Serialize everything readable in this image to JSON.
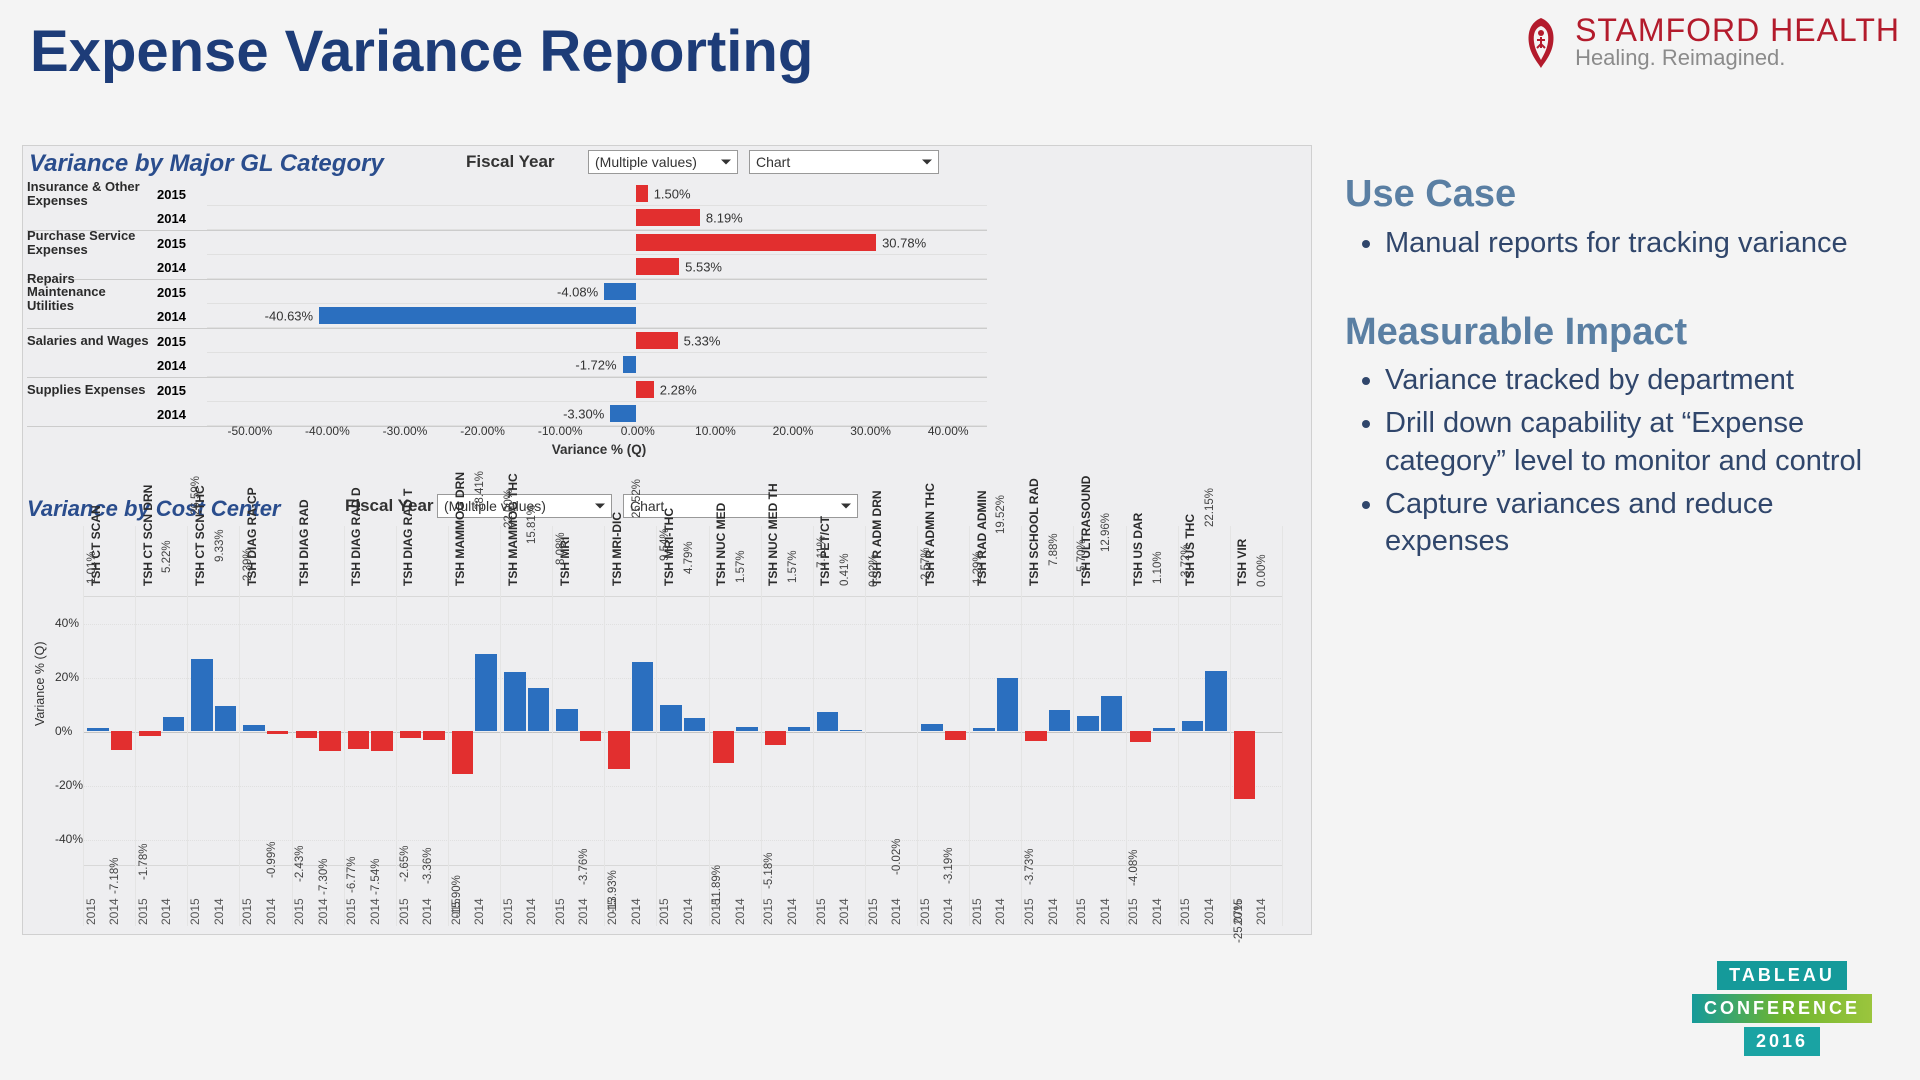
{
  "title": "Expense Variance Reporting",
  "brand": {
    "name": "STAMFORD HEALTH",
    "tagline": "Healing. Reimagined.",
    "mark_color": "#b31b2c"
  },
  "colors": {
    "pos": "#e22f2f",
    "neg": "#2b6fbf",
    "axis": "#666666"
  },
  "chart1": {
    "title": "Variance by Major GL Category",
    "fy_label": "Fiscal Year",
    "fy_value": "(Multiple values)",
    "view_value": "Chart",
    "xmin": -55,
    "xmax": 45,
    "xticks": [
      -50,
      -40,
      -30,
      -20,
      -10,
      0,
      10,
      20,
      30,
      40
    ],
    "xtick_fmt": "pct2",
    "axis_title": "Variance % (Q)",
    "categories": [
      {
        "name": "Insurance & Other Expenses",
        "rows": [
          {
            "year": "2015",
            "val": 1.5
          },
          {
            "year": "2014",
            "val": 8.19
          }
        ]
      },
      {
        "name": "Purchase Service Expenses",
        "rows": [
          {
            "year": "2015",
            "val": 30.78
          },
          {
            "year": "2014",
            "val": 5.53
          }
        ]
      },
      {
        "name": "Repairs Maintenance Utilities",
        "rows": [
          {
            "year": "2015",
            "val": -4.08
          },
          {
            "year": "2014",
            "val": -40.63
          }
        ]
      },
      {
        "name": "Salaries and Wages",
        "rows": [
          {
            "year": "2015",
            "val": 5.33
          },
          {
            "year": "2014",
            "val": -1.72
          }
        ]
      },
      {
        "name": "Supplies Expenses",
        "rows": [
          {
            "year": "2015",
            "val": 2.28
          },
          {
            "year": "2014",
            "val": -3.3
          }
        ]
      }
    ]
  },
  "chart2": {
    "title": "Variance by Cost Center",
    "fy_label": "Fiscal Year",
    "fy_value": "(Multiple values)",
    "view_value": "Chart",
    "ymin": -50,
    "ymax": 50,
    "yticks": [
      -40,
      -20,
      0,
      20,
      40
    ],
    "axis_title": "Variance % (Q)",
    "year_left": "2015",
    "year_right": "2014",
    "groups": [
      {
        "name": "TSH CT SCAN",
        "v2015": 1.01,
        "v2014": -7.18
      },
      {
        "name": "TSH CT SCN DRN",
        "v2015": -1.78,
        "v2014": 5.22
      },
      {
        "name": "TSH CT SCN-THC",
        "v2015": 26.59,
        "v2014": 9.33
      },
      {
        "name": "TSH DIAG RA-CP",
        "v2015": 2.39,
        "v2014": -0.99
      },
      {
        "name": "TSH DIAG RAD",
        "v2015": -2.43,
        "v2014": -7.3
      },
      {
        "name": "TSH DIAG RAD D",
        "v2015": -6.77,
        "v2014": -7.54
      },
      {
        "name": "TSH DIAG RAD T",
        "v2015": -2.65,
        "v2014": -3.36
      },
      {
        "name": "TSH MAMMOG DRN",
        "v2015": -15.9,
        "v2014": 28.41
      },
      {
        "name": "TSH MAMMOG THC",
        "v2015": 22.0,
        "v2014": 15.81
      },
      {
        "name": "TSH MRI",
        "v2015": 8.08,
        "v2014": -3.76
      },
      {
        "name": "TSH MRI-DIC",
        "v2015": -13.93,
        "v2014": 25.52
      },
      {
        "name": "TSH MRI-THC",
        "v2015": 9.54,
        "v2014": 4.79
      },
      {
        "name": "TSH NUC MED",
        "v2015": -11.89,
        "v2014": 1.57
      },
      {
        "name": "TSH NUC MED TH",
        "v2015": -5.18,
        "v2014": 1.57
      },
      {
        "name": "TSH PET/CT",
        "v2015": 7.11,
        "v2014": 0.41
      },
      {
        "name": "TSH R ADM DRN",
        "v2015": 0.02,
        "v2014": -0.02
      },
      {
        "name": "TSH R ADMN THC",
        "v2015": 2.57,
        "v2014": -3.19
      },
      {
        "name": "TSH RAD ADMIN",
        "v2015": 1.29,
        "v2014": 19.52
      },
      {
        "name": "TSH SCHOOL RAD",
        "v2015": -3.73,
        "v2014": 7.88
      },
      {
        "name": "TSH ULTRASOUND",
        "v2015": 5.7,
        "v2014": 12.96
      },
      {
        "name": "TSH US DAR",
        "v2015": -4.08,
        "v2014": 1.1
      },
      {
        "name": "TSH US THC",
        "v2015": 3.72,
        "v2014": 22.15
      },
      {
        "name": "TSH VIR",
        "v2015": -25.07,
        "v2014": 0.0
      }
    ]
  },
  "side": {
    "h1": "Use Case",
    "b1": [
      "Manual reports for tracking variance"
    ],
    "h2": "Measurable Impact",
    "b2": [
      "Variance tracked by department",
      "Drill down capability at “Expense category” level to monitor and control",
      "Capture variances and reduce expenses"
    ]
  },
  "conf": {
    "r1": "TABLEAU",
    "r2": "CONFERENCE",
    "r3": "2016"
  }
}
